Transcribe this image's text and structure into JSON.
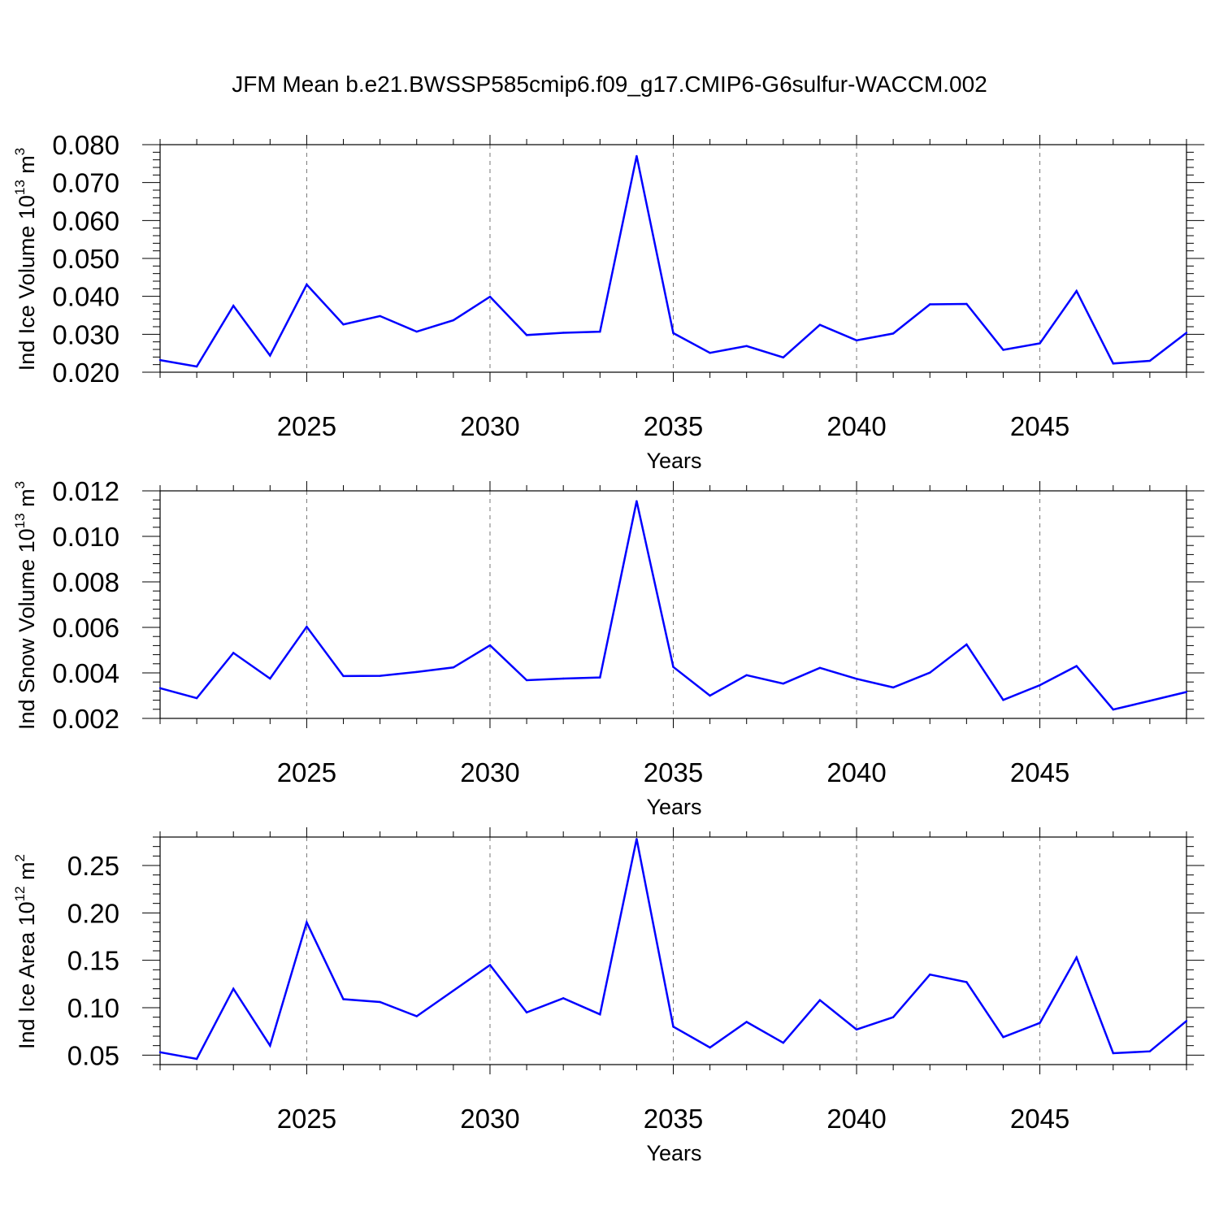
{
  "title": "JFM Mean b.e21.BWSSP585cmip6.f09_g17.CMIP6-G6sulfur-WACCM.002",
  "colors": {
    "series": "#0000ff",
    "grid": "#777777"
  },
  "chart_data": [
    {
      "type": "line",
      "xlabel": "Years",
      "ylabel": {
        "main": "Ind Ice Volume 10",
        "exp": "13",
        "unit": " m",
        "unit_exp": "3"
      },
      "xlim": [
        2021,
        2049
      ],
      "ylim": [
        0.02,
        0.08
      ],
      "xticks": [
        2025,
        2030,
        2035,
        2040,
        2045
      ],
      "xtick_labels": [
        "2025",
        "2030",
        "2035",
        "2040",
        "2045"
      ],
      "yticks": [
        0.02,
        0.03,
        0.04,
        0.05,
        0.06,
        0.07,
        0.08
      ],
      "ytick_labels": [
        "0.020",
        "0.030",
        "0.040",
        "0.050",
        "0.060",
        "0.070",
        "0.080"
      ],
      "y_minor_step": 0.002,
      "grid": "dashed vertical at major x ticks",
      "x": [
        2021,
        2022,
        2023,
        2024,
        2025,
        2026,
        2027,
        2028,
        2029,
        2030,
        2031,
        2032,
        2033,
        2034,
        2035,
        2036,
        2037,
        2038,
        2039,
        2040,
        2041,
        2042,
        2043,
        2044,
        2045,
        2046,
        2047,
        2048,
        2049
      ],
      "values": [
        0.0232,
        0.0215,
        0.0375,
        0.0244,
        0.0431,
        0.0326,
        0.0348,
        0.0307,
        0.0337,
        0.0399,
        0.0298,
        0.0304,
        0.0307,
        0.077,
        0.0303,
        0.0251,
        0.0269,
        0.0239,
        0.0325,
        0.0284,
        0.0302,
        0.0379,
        0.038,
        0.0259,
        0.0276,
        0.0414,
        0.0223,
        0.023,
        0.0304
      ]
    },
    {
      "type": "line",
      "xlabel": "Years",
      "ylabel": {
        "main": "Ind Snow Volume 10",
        "exp": "13",
        "unit": " m",
        "unit_exp": "3"
      },
      "xlim": [
        2021,
        2049
      ],
      "ylim": [
        0.002,
        0.012
      ],
      "xticks": [
        2025,
        2030,
        2035,
        2040,
        2045
      ],
      "xtick_labels": [
        "2025",
        "2030",
        "2035",
        "2040",
        "2045"
      ],
      "yticks": [
        0.002,
        0.004,
        0.006,
        0.008,
        0.01,
        0.012
      ],
      "ytick_labels": [
        "0.002",
        "0.004",
        "0.006",
        "0.008",
        "0.010",
        "0.012"
      ],
      "y_minor_step": 0.0004,
      "grid": "dashed vertical at major x ticks",
      "x": [
        2021,
        2022,
        2023,
        2024,
        2025,
        2026,
        2027,
        2028,
        2029,
        2030,
        2031,
        2032,
        2033,
        2034,
        2035,
        2036,
        2037,
        2038,
        2039,
        2040,
        2041,
        2042,
        2043,
        2044,
        2045,
        2046,
        2047,
        2048,
        2049
      ],
      "values": [
        0.00333,
        0.00289,
        0.00488,
        0.00375,
        0.00603,
        0.00386,
        0.00387,
        0.00404,
        0.00424,
        0.00521,
        0.00368,
        0.00375,
        0.0038,
        0.01155,
        0.00426,
        0.003,
        0.0039,
        0.00353,
        0.00422,
        0.00374,
        0.00336,
        0.00401,
        0.00525,
        0.00281,
        0.00346,
        0.0043,
        0.00239,
        0.00277,
        0.00316
      ]
    },
    {
      "type": "line",
      "xlabel": "Years",
      "ylabel": {
        "main": "Ind Ice Area 10",
        "exp": "12",
        "unit": " m",
        "unit_exp": "2"
      },
      "xlim": [
        2021,
        2049
      ],
      "ylim": [
        0.04,
        0.28
      ],
      "xticks": [
        2025,
        2030,
        2035,
        2040,
        2045
      ],
      "xtick_labels": [
        "2025",
        "2030",
        "2035",
        "2040",
        "2045"
      ],
      "yticks": [
        0.05,
        0.1,
        0.15,
        0.2,
        0.25
      ],
      "ytick_labels": [
        "0.05",
        "0.10",
        "0.15",
        "0.20",
        "0.25"
      ],
      "y_minor_step": 0.01,
      "grid": "dashed vertical at major x ticks",
      "x": [
        2021,
        2022,
        2023,
        2024,
        2025,
        2026,
        2027,
        2028,
        2029,
        2030,
        2031,
        2032,
        2033,
        2034,
        2035,
        2036,
        2037,
        2038,
        2039,
        2040,
        2041,
        2042,
        2043,
        2044,
        2045,
        2046,
        2047,
        2048,
        2049
      ],
      "values": [
        0.053,
        0.046,
        0.12,
        0.06,
        0.19,
        0.109,
        0.106,
        0.091,
        0.118,
        0.145,
        0.095,
        0.11,
        0.093,
        0.278,
        0.08,
        0.058,
        0.085,
        0.063,
        0.108,
        0.077,
        0.09,
        0.135,
        0.127,
        0.069,
        0.084,
        0.153,
        0.052,
        0.054,
        0.086
      ]
    }
  ]
}
